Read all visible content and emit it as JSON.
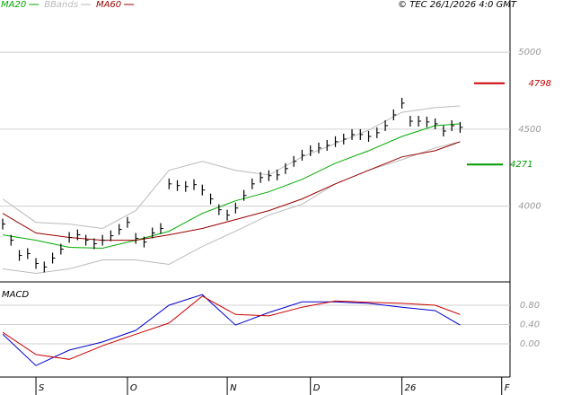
{
  "chart_data": [
    {
      "type": "ohlc",
      "annotation": "© TEC 26/1/2026 4:0 GMT",
      "xlim": [
        0,
        61
      ],
      "ylim": [
        3520,
        5240
      ],
      "yticks": [
        4000,
        4500,
        5000
      ],
      "grid": true,
      "bars": {
        "color": "#000000",
        "x": [
          0,
          1,
          2,
          3,
          4,
          5,
          6,
          7,
          8,
          9,
          10,
          11,
          12,
          13,
          14,
          15,
          16,
          17,
          18,
          19,
          20,
          21,
          22,
          23,
          24,
          25,
          26,
          27,
          28,
          29,
          30,
          31,
          32,
          33,
          34,
          35,
          36,
          37,
          38,
          39,
          40,
          41,
          42,
          43,
          44,
          45,
          46,
          47,
          48,
          49,
          50,
          51,
          52,
          53,
          54,
          55
        ],
        "high": [
          3919,
          3814,
          3715,
          3727,
          3663,
          3640,
          3698,
          3756,
          3832,
          3849,
          3814,
          3791,
          3814,
          3843,
          3884,
          3930,
          3826,
          3802,
          3861,
          3890,
          4180,
          4169,
          4163,
          4175,
          4140,
          4082,
          4012,
          3977,
          4023,
          4105,
          4180,
          4221,
          4233,
          4238,
          4279,
          4326,
          4366,
          4395,
          4413,
          4430,
          4454,
          4471,
          4500,
          4500,
          4488,
          4512,
          4558,
          4628,
          4704,
          4587,
          4587,
          4582,
          4570,
          4523,
          4558,
          4547
        ],
        "low": [
          3849,
          3744,
          3645,
          3657,
          3593,
          3570,
          3628,
          3686,
          3762,
          3779,
          3744,
          3721,
          3744,
          3773,
          3814,
          3860,
          3756,
          3732,
          3791,
          3820,
          4110,
          4099,
          4093,
          4105,
          4070,
          4012,
          3942,
          3907,
          3953,
          4035,
          4110,
          4151,
          4163,
          4168,
          4209,
          4256,
          4296,
          4325,
          4343,
          4360,
          4384,
          4401,
          4430,
          4430,
          4418,
          4442,
          4488,
          4558,
          4634,
          4517,
          4517,
          4512,
          4500,
          4453,
          4488,
          4477
        ],
        "close": [
          3884,
          3779,
          3680,
          3692,
          3628,
          3605,
          3663,
          3721,
          3797,
          3814,
          3779,
          3756,
          3779,
          3808,
          3849,
          3895,
          3791,
          3767,
          3826,
          3855,
          4145,
          4134,
          4128,
          4140,
          4105,
          4047,
          3977,
          3942,
          3988,
          4070,
          4145,
          4186,
          4198,
          4203,
          4244,
          4291,
          4331,
          4360,
          4378,
          4395,
          4419,
          4436,
          4465,
          4465,
          4453,
          4477,
          4523,
          4593,
          4669,
          4552,
          4552,
          4547,
          4535,
          4488,
          4523,
          4512
        ]
      },
      "series": [
        {
          "name": "MA20",
          "color": "#00aa00",
          "x": [
            0,
            4,
            8,
            12,
            16,
            20,
            24,
            28,
            32,
            36,
            40,
            44,
            48,
            52,
            55
          ],
          "values": [
            3814,
            3779,
            3733,
            3727,
            3779,
            3837,
            3953,
            4035,
            4093,
            4174,
            4279,
            4360,
            4453,
            4523,
            4535
          ]
        },
        {
          "name": "BBands",
          "color": "#bbbbbb",
          "x": [
            0,
            4,
            8,
            12,
            16,
            20,
            24,
            28,
            32,
            36,
            40,
            44,
            48,
            52,
            55
          ],
          "values": [
            4047,
            3895,
            3884,
            3855,
            3971,
            4233,
            4291,
            4233,
            4203,
            4320,
            4407,
            4494,
            4610,
            4640,
            4651
          ],
          "lower": [
            3593,
            3564,
            3593,
            3651,
            3651,
            3622,
            3738,
            3837,
            3942,
            4012,
            4145,
            4233,
            4302,
            4378,
            4419
          ]
        },
        {
          "name": "MA60",
          "color": "#990000",
          "x": [
            0,
            4,
            8,
            12,
            16,
            20,
            24,
            28,
            32,
            36,
            40,
            44,
            48,
            52,
            55
          ],
          "values": [
            3953,
            3826,
            3797,
            3779,
            3779,
            3814,
            3855,
            3913,
            3971,
            4047,
            4145,
            4233,
            4320,
            4360,
            4419
          ]
        }
      ],
      "levels": [
        {
          "value": 4798,
          "color": "#cc0000"
        },
        {
          "value": 4271,
          "color": "#009900"
        }
      ]
    },
    {
      "type": "line",
      "title": "MACD",
      "xlim": [
        0,
        61
      ],
      "ylim": [
        -0.65,
        1.21
      ],
      "yticks": [
        {
          "value": 0,
          "label": "0.00"
        },
        {
          "value": 0.4,
          "label": "0.40"
        },
        {
          "value": 0.8,
          "label": "0.80"
        }
      ],
      "grid": true,
      "xticks": [
        {
          "value": 4,
          "label": "S"
        },
        {
          "value": 15,
          "label": "O"
        },
        {
          "value": 27,
          "label": "N"
        },
        {
          "value": 37,
          "label": "D"
        },
        {
          "value": 48,
          "label": "26"
        },
        {
          "value": 60,
          "label": "F"
        }
      ],
      "series": [
        {
          "color": "#0000cc",
          "x": [
            0,
            4,
            8,
            12,
            16,
            20,
            24,
            28,
            32,
            36,
            40,
            44,
            48,
            52,
            55
          ],
          "values": [
            0.2,
            -0.45,
            -0.13,
            0.04,
            0.28,
            0.8,
            1.02,
            0.39,
            0.65,
            0.87,
            0.87,
            0.84,
            0.76,
            0.69,
            0.39
          ]
        },
        {
          "color": "#cc0000",
          "x": [
            0,
            4,
            8,
            12,
            16,
            20,
            24,
            28,
            32,
            36,
            40,
            44,
            48,
            52,
            55
          ],
          "values": [
            0.24,
            -0.22,
            -0.32,
            -0.04,
            0.2,
            0.43,
            0.99,
            0.61,
            0.58,
            0.76,
            0.89,
            0.86,
            0.84,
            0.8,
            0.61
          ]
        }
      ]
    }
  ]
}
